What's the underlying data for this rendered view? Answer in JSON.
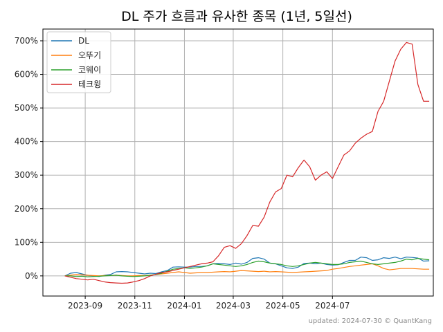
{
  "chart_data": {
    "type": "line",
    "title": "DL 주가 흐름과 유사한 종목 (1년, 5일선)",
    "xlabel": "",
    "ylabel": "",
    "x_ticks": [
      "2023-09",
      "2023-11",
      "2024-01",
      "2024-03",
      "2024-05",
      "2024-07"
    ],
    "y_ticks": [
      "0%",
      "100%",
      "200%",
      "300%",
      "400%",
      "500%",
      "600%",
      "700%"
    ],
    "ylim": [
      -60,
      735
    ],
    "grid": true,
    "legend_position": "top-left",
    "series": [
      {
        "name": "DL",
        "color": "#1f77b4",
        "points": [
          [
            "2023-08-07",
            0
          ],
          [
            "2023-08-14",
            8
          ],
          [
            "2023-08-21",
            10
          ],
          [
            "2023-08-28",
            6
          ],
          [
            "2023-09-04",
            2
          ],
          [
            "2023-09-11",
            0
          ],
          [
            "2023-09-18",
            -2
          ],
          [
            "2023-09-25",
            2
          ],
          [
            "2023-10-02",
            4
          ],
          [
            "2023-10-09",
            12
          ],
          [
            "2023-10-16",
            13
          ],
          [
            "2023-10-23",
            12
          ],
          [
            "2023-10-30",
            10
          ],
          [
            "2023-11-06",
            8
          ],
          [
            "2023-11-13",
            6
          ],
          [
            "2023-11-20",
            8
          ],
          [
            "2023-11-27",
            7
          ],
          [
            "2023-12-04",
            12
          ],
          [
            "2023-12-11",
            16
          ],
          [
            "2023-12-18",
            26
          ],
          [
            "2023-12-25",
            27
          ],
          [
            "2024-01-01",
            26
          ],
          [
            "2024-01-08",
            26
          ],
          [
            "2024-01-15",
            28
          ],
          [
            "2024-01-22",
            28
          ],
          [
            "2024-01-29",
            30
          ],
          [
            "2024-02-05",
            36
          ],
          [
            "2024-02-12",
            37
          ],
          [
            "2024-02-19",
            36
          ],
          [
            "2024-02-26",
            34
          ],
          [
            "2024-03-04",
            38
          ],
          [
            "2024-03-11",
            35
          ],
          [
            "2024-03-18",
            40
          ],
          [
            "2024-03-25",
            52
          ],
          [
            "2024-04-01",
            54
          ],
          [
            "2024-04-08",
            50
          ],
          [
            "2024-04-15",
            38
          ],
          [
            "2024-04-22",
            36
          ],
          [
            "2024-04-29",
            30
          ],
          [
            "2024-05-06",
            24
          ],
          [
            "2024-05-13",
            22
          ],
          [
            "2024-05-20",
            26
          ],
          [
            "2024-05-27",
            37
          ],
          [
            "2024-06-03",
            38
          ],
          [
            "2024-06-10",
            36
          ],
          [
            "2024-06-17",
            38
          ],
          [
            "2024-06-24",
            34
          ],
          [
            "2024-07-01",
            32
          ],
          [
            "2024-07-08",
            33
          ],
          [
            "2024-07-15",
            40
          ],
          [
            "2024-07-22",
            46
          ],
          [
            "2024-07-29",
            46
          ],
          [
            "2024-08-05",
            56
          ],
          [
            "2024-08-12",
            54
          ],
          [
            "2024-08-19",
            46
          ],
          [
            "2024-08-26",
            48
          ],
          [
            "2024-09-02",
            54
          ],
          [
            "2024-09-09",
            52
          ],
          [
            "2024-09-16",
            56
          ],
          [
            "2024-09-23",
            51
          ],
          [
            "2024-09-30",
            56
          ],
          [
            "2024-10-07",
            55
          ],
          [
            "2024-10-14",
            53
          ],
          [
            "2024-10-21",
            44
          ],
          [
            "2024-10-28",
            45
          ]
        ]
      },
      {
        "name": "오뚜기",
        "color": "#ff7f0e",
        "points": [
          [
            "2023-08-07",
            0
          ],
          [
            "2023-08-14",
            2
          ],
          [
            "2023-08-21",
            4
          ],
          [
            "2023-08-28",
            3
          ],
          [
            "2023-09-04",
            2
          ],
          [
            "2023-09-11",
            1
          ],
          [
            "2023-09-18",
            0
          ],
          [
            "2023-09-25",
            1
          ],
          [
            "2023-10-02",
            1
          ],
          [
            "2023-10-09",
            2
          ],
          [
            "2023-10-16",
            1
          ],
          [
            "2023-10-23",
            0
          ],
          [
            "2023-10-30",
            0
          ],
          [
            "2023-11-06",
            1
          ],
          [
            "2023-11-13",
            1
          ],
          [
            "2023-11-20",
            2
          ],
          [
            "2023-11-27",
            4
          ],
          [
            "2023-12-04",
            6
          ],
          [
            "2023-12-11",
            8
          ],
          [
            "2023-12-18",
            10
          ],
          [
            "2023-12-25",
            12
          ],
          [
            "2024-01-01",
            10
          ],
          [
            "2024-01-08",
            8
          ],
          [
            "2024-01-15",
            9
          ],
          [
            "2024-01-22",
            10
          ],
          [
            "2024-01-29",
            10
          ],
          [
            "2024-02-05",
            11
          ],
          [
            "2024-02-12",
            12
          ],
          [
            "2024-02-19",
            13
          ],
          [
            "2024-02-26",
            12
          ],
          [
            "2024-03-04",
            14
          ],
          [
            "2024-03-11",
            16
          ],
          [
            "2024-03-18",
            15
          ],
          [
            "2024-03-25",
            14
          ],
          [
            "2024-04-01",
            13
          ],
          [
            "2024-04-08",
            14
          ],
          [
            "2024-04-15",
            12
          ],
          [
            "2024-04-22",
            13
          ],
          [
            "2024-04-29",
            12
          ],
          [
            "2024-05-06",
            11
          ],
          [
            "2024-05-13",
            10
          ],
          [
            "2024-05-20",
            11
          ],
          [
            "2024-05-27",
            12
          ],
          [
            "2024-06-03",
            13
          ],
          [
            "2024-06-10",
            14
          ],
          [
            "2024-06-17",
            15
          ],
          [
            "2024-06-24",
            16
          ],
          [
            "2024-07-01",
            20
          ],
          [
            "2024-07-08",
            22
          ],
          [
            "2024-07-15",
            25
          ],
          [
            "2024-07-22",
            28
          ],
          [
            "2024-07-29",
            30
          ],
          [
            "2024-08-05",
            32
          ],
          [
            "2024-08-12",
            34
          ],
          [
            "2024-08-19",
            36
          ],
          [
            "2024-08-26",
            30
          ],
          [
            "2024-09-02",
            22
          ],
          [
            "2024-09-09",
            18
          ],
          [
            "2024-09-16",
            20
          ],
          [
            "2024-09-23",
            22
          ],
          [
            "2024-09-30",
            22
          ],
          [
            "2024-10-07",
            22
          ],
          [
            "2024-10-14",
            21
          ],
          [
            "2024-10-21",
            20
          ],
          [
            "2024-10-28",
            20
          ]
        ]
      },
      {
        "name": "코웨이",
        "color": "#2ca02c",
        "points": [
          [
            "2023-08-07",
            0
          ],
          [
            "2023-08-14",
            0
          ],
          [
            "2023-08-21",
            -2
          ],
          [
            "2023-08-28",
            -1
          ],
          [
            "2023-09-04",
            -3
          ],
          [
            "2023-09-11",
            -2
          ],
          [
            "2023-09-18",
            -1
          ],
          [
            "2023-09-25",
            0
          ],
          [
            "2023-10-02",
            1
          ],
          [
            "2023-10-09",
            2
          ],
          [
            "2023-10-16",
            0
          ],
          [
            "2023-10-23",
            -1
          ],
          [
            "2023-10-30",
            -2
          ],
          [
            "2023-11-06",
            -1
          ],
          [
            "2023-11-13",
            0
          ],
          [
            "2023-11-20",
            2
          ],
          [
            "2023-11-27",
            4
          ],
          [
            "2023-12-04",
            8
          ],
          [
            "2023-12-11",
            14
          ],
          [
            "2023-12-18",
            20
          ],
          [
            "2023-12-25",
            22
          ],
          [
            "2024-01-01",
            24
          ],
          [
            "2024-01-08",
            22
          ],
          [
            "2024-01-15",
            24
          ],
          [
            "2024-01-22",
            26
          ],
          [
            "2024-01-29",
            30
          ],
          [
            "2024-02-05",
            36
          ],
          [
            "2024-02-12",
            34
          ],
          [
            "2024-02-19",
            32
          ],
          [
            "2024-02-26",
            30
          ],
          [
            "2024-03-04",
            28
          ],
          [
            "2024-03-11",
            30
          ],
          [
            "2024-03-18",
            34
          ],
          [
            "2024-03-25",
            40
          ],
          [
            "2024-04-01",
            44
          ],
          [
            "2024-04-08",
            42
          ],
          [
            "2024-04-15",
            38
          ],
          [
            "2024-04-22",
            36
          ],
          [
            "2024-04-29",
            34
          ],
          [
            "2024-05-06",
            30
          ],
          [
            "2024-05-13",
            28
          ],
          [
            "2024-05-20",
            30
          ],
          [
            "2024-05-27",
            34
          ],
          [
            "2024-06-03",
            38
          ],
          [
            "2024-06-10",
            40
          ],
          [
            "2024-06-17",
            38
          ],
          [
            "2024-06-24",
            36
          ],
          [
            "2024-07-01",
            34
          ],
          [
            "2024-07-08",
            34
          ],
          [
            "2024-07-15",
            36
          ],
          [
            "2024-07-22",
            40
          ],
          [
            "2024-07-29",
            42
          ],
          [
            "2024-08-05",
            44
          ],
          [
            "2024-08-12",
            40
          ],
          [
            "2024-08-19",
            36
          ],
          [
            "2024-08-26",
            34
          ],
          [
            "2024-09-02",
            36
          ],
          [
            "2024-09-09",
            38
          ],
          [
            "2024-09-16",
            40
          ],
          [
            "2024-09-23",
            44
          ],
          [
            "2024-09-30",
            50
          ],
          [
            "2024-10-07",
            48
          ],
          [
            "2024-10-14",
            52
          ],
          [
            "2024-10-21",
            50
          ],
          [
            "2024-10-28",
            48
          ]
        ]
      },
      {
        "name": "테크윙",
        "color": "#d62728",
        "points": [
          [
            "2023-08-07",
            0
          ],
          [
            "2023-08-14",
            -4
          ],
          [
            "2023-08-21",
            -8
          ],
          [
            "2023-08-28",
            -10
          ],
          [
            "2023-09-04",
            -12
          ],
          [
            "2023-09-11",
            -10
          ],
          [
            "2023-09-18",
            -14
          ],
          [
            "2023-09-25",
            -18
          ],
          [
            "2023-10-02",
            -20
          ],
          [
            "2023-10-09",
            -21
          ],
          [
            "2023-10-16",
            -22
          ],
          [
            "2023-10-23",
            -21
          ],
          [
            "2023-10-30",
            -18
          ],
          [
            "2023-11-06",
            -14
          ],
          [
            "2023-11-13",
            -8
          ],
          [
            "2023-11-20",
            0
          ],
          [
            "2023-11-27",
            5
          ],
          [
            "2023-12-04",
            10
          ],
          [
            "2023-12-11",
            12
          ],
          [
            "2023-12-18",
            16
          ],
          [
            "2023-12-25",
            20
          ],
          [
            "2024-01-01",
            24
          ],
          [
            "2024-01-08",
            28
          ],
          [
            "2024-01-15",
            32
          ],
          [
            "2024-01-22",
            36
          ],
          [
            "2024-01-29",
            38
          ],
          [
            "2024-02-05",
            42
          ],
          [
            "2024-02-12",
            60
          ],
          [
            "2024-02-19",
            85
          ],
          [
            "2024-02-26",
            90
          ],
          [
            "2024-03-04",
            82
          ],
          [
            "2024-03-11",
            96
          ],
          [
            "2024-03-18",
            120
          ],
          [
            "2024-03-25",
            150
          ],
          [
            "2024-04-01",
            148
          ],
          [
            "2024-04-08",
            175
          ],
          [
            "2024-04-15",
            220
          ],
          [
            "2024-04-22",
            250
          ],
          [
            "2024-04-29",
            260
          ],
          [
            "2024-05-06",
            300
          ],
          [
            "2024-05-13",
            295
          ],
          [
            "2024-05-20",
            322
          ],
          [
            "2024-05-27",
            345
          ],
          [
            "2024-06-03",
            325
          ],
          [
            "2024-06-10",
            285
          ],
          [
            "2024-06-17",
            300
          ],
          [
            "2024-06-24",
            310
          ],
          [
            "2024-07-01",
            290
          ],
          [
            "2024-07-08",
            325
          ],
          [
            "2024-07-15",
            360
          ],
          [
            "2024-07-22",
            372
          ],
          [
            "2024-07-29",
            395
          ],
          [
            "2024-08-05",
            410
          ],
          [
            "2024-08-12",
            422
          ],
          [
            "2024-08-19",
            430
          ],
          [
            "2024-08-26",
            490
          ],
          [
            "2024-09-02",
            520
          ],
          [
            "2024-09-09",
            580
          ],
          [
            "2024-09-16",
            640
          ],
          [
            "2024-09-23",
            675
          ],
          [
            "2024-09-30",
            695
          ],
          [
            "2024-10-07",
            690
          ],
          [
            "2024-10-14",
            570
          ],
          [
            "2024-10-21",
            520
          ],
          [
            "2024-10-28",
            520
          ]
        ]
      }
    ]
  },
  "footer": {
    "text": "updated: 2024-07-30 © QuantKang"
  }
}
